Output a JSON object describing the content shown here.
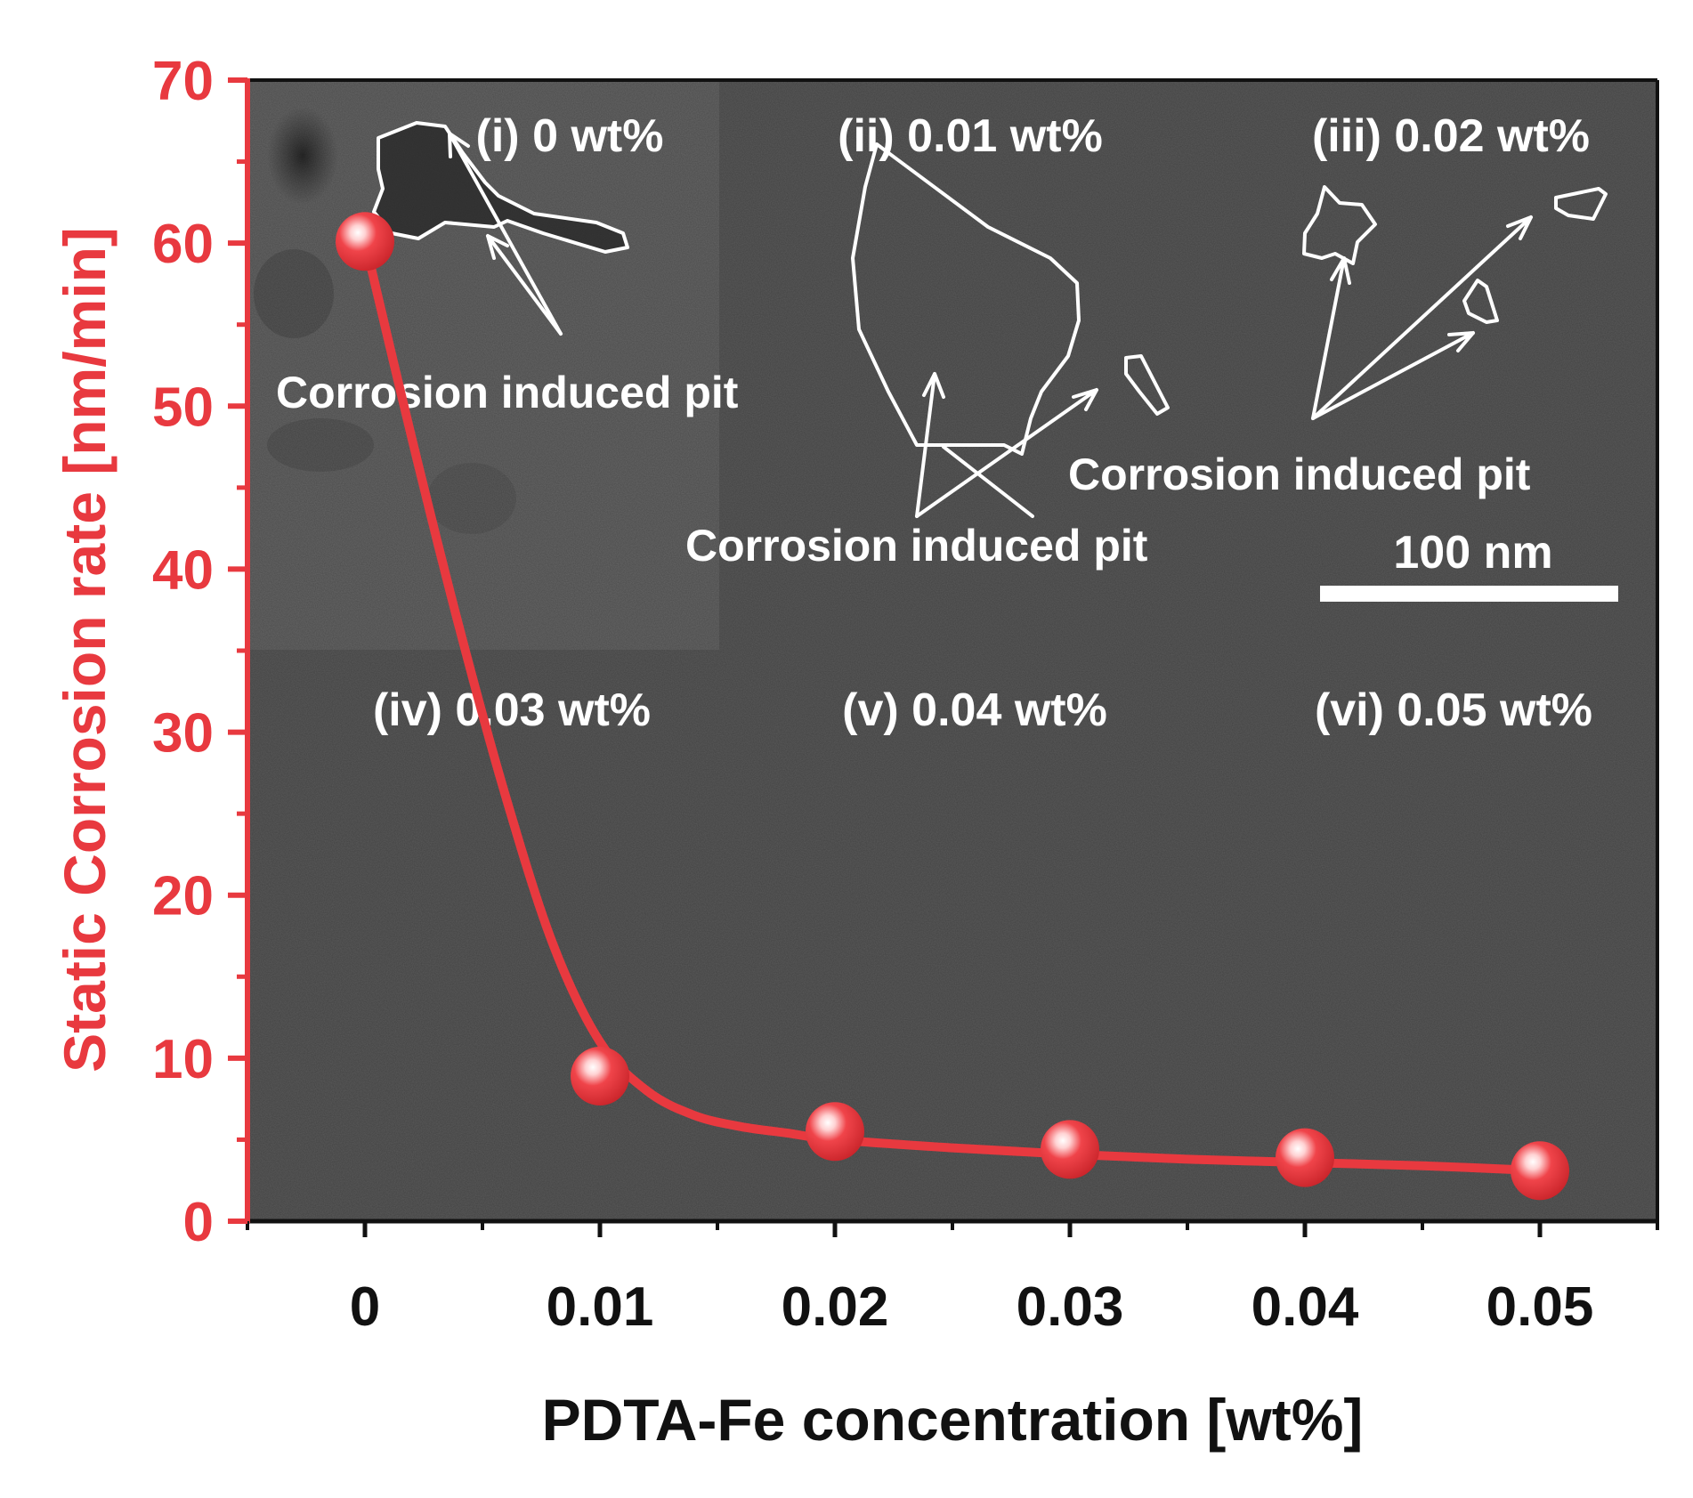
{
  "chart_data": {
    "type": "scatter",
    "title": "",
    "xlabel": "PDTA-Fe concentration [wt%]",
    "ylabel": "Static Corrosion rate [nm/min]",
    "xlim": [
      -0.005,
      0.055
    ],
    "ylim": [
      0,
      70
    ],
    "x_ticks": [
      0,
      0.01,
      0.02,
      0.03,
      0.04,
      0.05
    ],
    "x_tick_labels": [
      "0",
      "0.01",
      "0.02",
      "0.03",
      "0.04",
      "0.05"
    ],
    "y_ticks": [
      0,
      10,
      20,
      30,
      40,
      50,
      60,
      70
    ],
    "y_tick_labels": [
      "0",
      "10",
      "20",
      "30",
      "40",
      "50",
      "60",
      "70"
    ],
    "series": [
      {
        "name": "Static corrosion rate",
        "x": [
          0,
          0.01,
          0.02,
          0.03,
          0.04,
          0.05
        ],
        "y": [
          60.1,
          8.9,
          5.5,
          4.4,
          3.9,
          3.1
        ]
      }
    ],
    "fit_curve": {
      "name": "fit",
      "x": [
        0,
        0.002,
        0.004,
        0.006,
        0.008,
        0.01,
        0.012,
        0.014,
        0.016,
        0.018,
        0.02,
        0.025,
        0.03,
        0.035,
        0.04,
        0.045,
        0.05
      ],
      "y": [
        60.1,
        48.0,
        36.5,
        26.0,
        17.0,
        11.0,
        8.0,
        6.5,
        5.8,
        5.4,
        5.0,
        4.5,
        4.1,
        3.8,
        3.6,
        3.4,
        3.1
      ]
    },
    "colors": {
      "series": "#e8393f",
      "axis_left": "#e8393f",
      "axis_bottom": "#111111",
      "background": "#5a5a5a",
      "annotation": "#ffffff"
    },
    "inset_labels": [
      "(i) 0 wt%",
      "(ii) 0.01 wt%",
      "(iii) 0.02 wt%",
      "(iv) 0.03 wt%",
      "(v) 0.04 wt%",
      "(vi) 0.05 wt%"
    ],
    "annotations": [
      "Corrosion induced pit",
      "Corrosion induced pit",
      "Corrosion induced pit"
    ],
    "scale_bar_label": "100 nm"
  }
}
